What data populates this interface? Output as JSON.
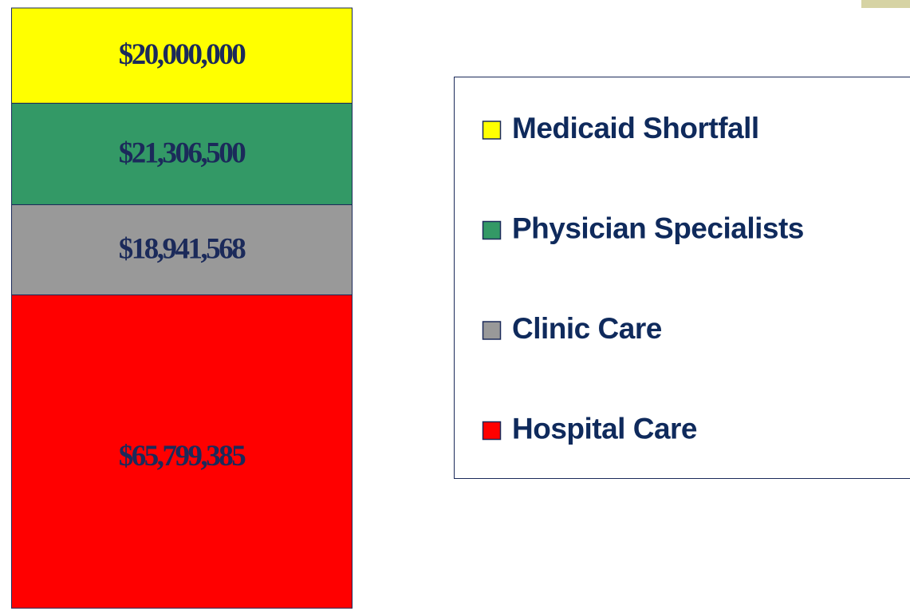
{
  "chart_data": {
    "type": "bar",
    "stacked": true,
    "legend": "right",
    "series": [
      {
        "name": "Hospital Care",
        "color": "#ff0000",
        "values": [
          65799385
        ],
        "value_labels": [
          "$65,799,385"
        ]
      },
      {
        "name": "Clinic Care",
        "color": "#999999",
        "values": [
          18941568
        ],
        "value_labels": [
          "$18,941,568"
        ]
      },
      {
        "name": "Physician Specialists",
        "color": "#339966",
        "values": [
          21306500
        ],
        "value_labels": [
          "$21,306,500"
        ]
      },
      {
        "name": "Medicaid Shortfall",
        "color": "#ffff00",
        "values": [
          20000000
        ],
        "value_labels": [
          "$20,000,000"
        ]
      }
    ]
  }
}
